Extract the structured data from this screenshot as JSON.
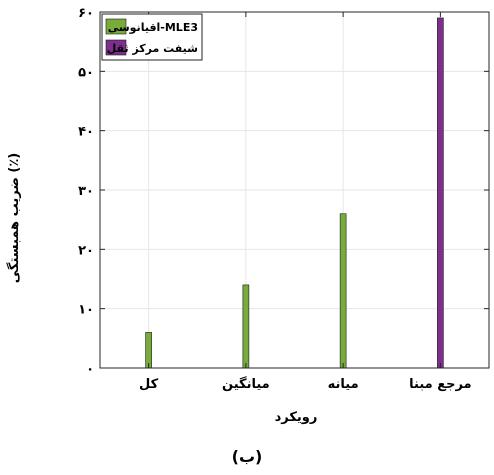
{
  "chart_data": {
    "type": "bar",
    "categories": [
      "کل",
      "میانگین",
      "میانه",
      "مرجع مبنا"
    ],
    "categories_display": [
      "کل",
      "میانگین",
      "میانه",
      "مرجع مبنا"
    ],
    "series": [
      {
        "name": "اقیانوسی-MLE3",
        "values": [
          6,
          14,
          26,
          null
        ],
        "color": "#77ac3b"
      },
      {
        "name": "شیفت مرکز ثقل",
        "values": [
          null,
          null,
          null,
          59
        ],
        "color": "#7e2f8e"
      }
    ],
    "ylim": [
      0,
      60
    ],
    "yticks": [
      0,
      10,
      20,
      30,
      40,
      50,
      60
    ],
    "ytick_labels": [
      "۰",
      "۱۰",
      "۲۰",
      "۳۰",
      "۴۰",
      "۵۰",
      "۶۰"
    ],
    "xlabel": "رویکرد",
    "ylabel": "ضریب همبستگی (٪)",
    "caption": "(ب)",
    "grid": true,
    "legend_position": "top-left"
  }
}
